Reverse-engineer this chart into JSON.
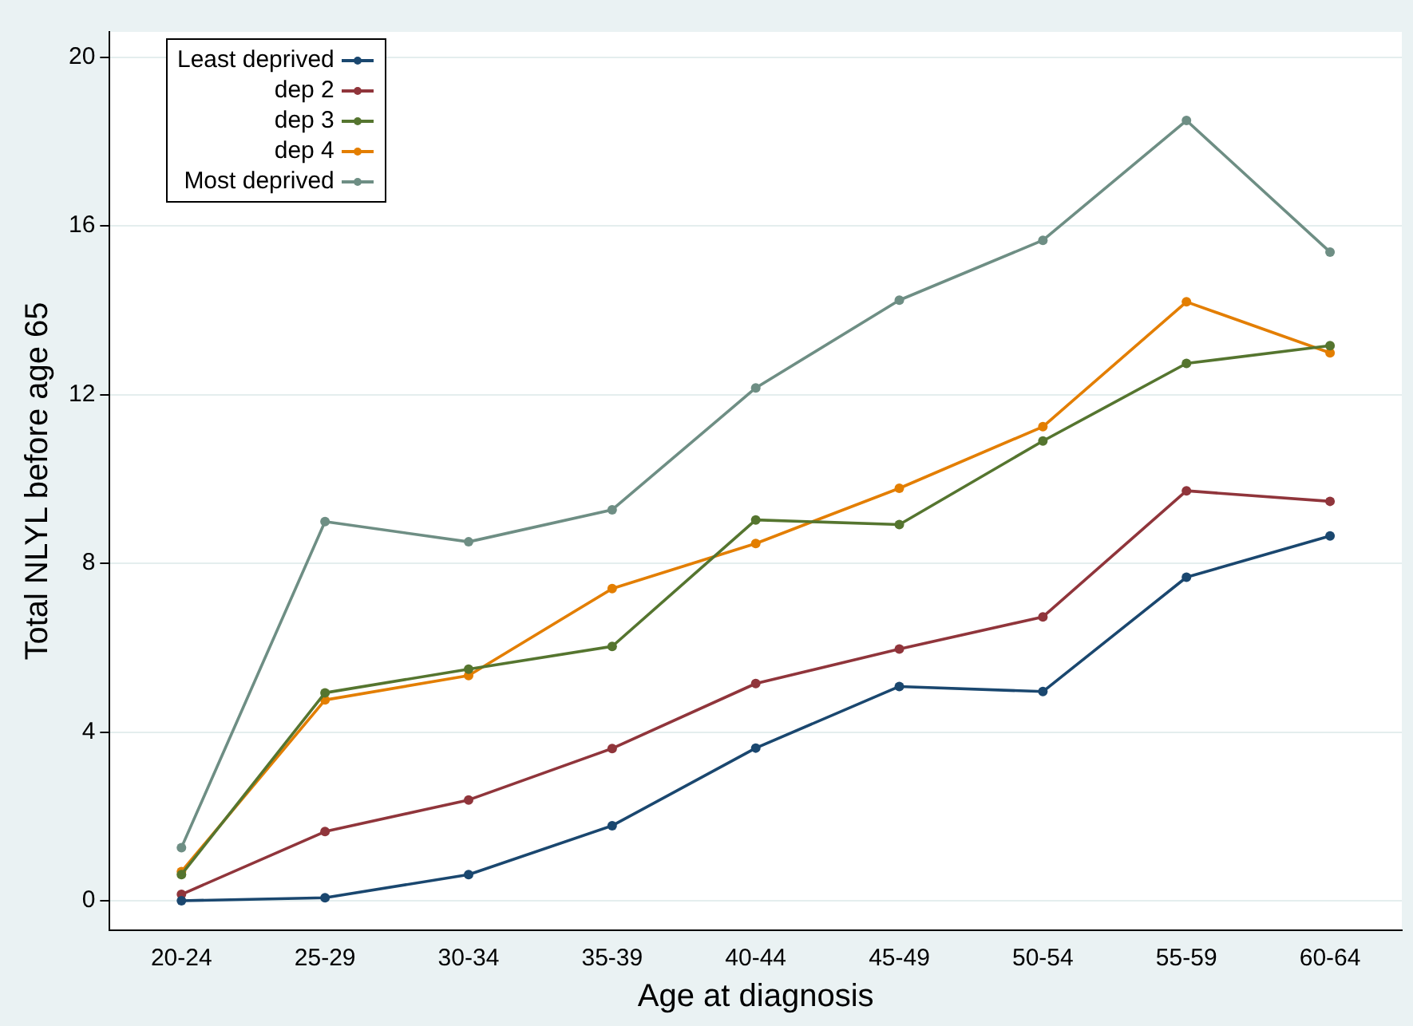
{
  "chart_data": {
    "type": "line",
    "xlabel": "Age at diagnosis",
    "ylabel": "Total NLYL before age 65",
    "categories": [
      "20-24",
      "25-29",
      "30-34",
      "35-39",
      "40-44",
      "45-49",
      "50-54",
      "55-59",
      "60-64"
    ],
    "series": [
      {
        "name": "Least deprived",
        "color": "#1a476f",
        "values": [
          0,
          0.07,
          0.62,
          1.78,
          3.62,
          5.08,
          4.96,
          7.67,
          8.65
        ]
      },
      {
        "name": "dep 2",
        "color": "#90353b",
        "values": [
          0.15,
          1.64,
          2.39,
          3.61,
          5.15,
          5.97,
          6.73,
          9.72,
          9.47
        ]
      },
      {
        "name": "dep 3",
        "color": "#55752f",
        "values": [
          0.62,
          4.93,
          5.49,
          6.03,
          9.03,
          8.92,
          10.9,
          12.74,
          13.16
        ]
      },
      {
        "name": "dep 4",
        "color": "#e37e00",
        "values": [
          0.69,
          4.76,
          5.34,
          7.4,
          8.47,
          9.78,
          11.24,
          14.2,
          12.99
        ]
      },
      {
        "name": "Most deprived",
        "color": "#6e8e84",
        "values": [
          1.26,
          8.99,
          8.51,
          9.27,
          12.16,
          14.24,
          15.66,
          18.5,
          15.38
        ]
      }
    ],
    "ylim": [
      -0.7,
      20.6
    ],
    "yticks": [
      0,
      4,
      8,
      12,
      16,
      20
    ],
    "grid": "y",
    "legend": "top left",
    "marker": "circle",
    "line_style": "solid"
  }
}
